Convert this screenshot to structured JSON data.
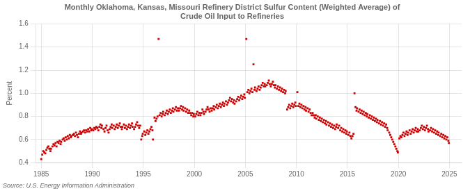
{
  "chart_data": {
    "type": "scatter",
    "title": "Monthly Oklahoma, Kansas, Missouri Refinery District Sulfur Content (Weighted Average) of\nCrude Oil Input to Refineries",
    "ylabel": "Percent",
    "source": "Source: U.S. Energy Information Administration",
    "color": "#CC0000",
    "marker": "square",
    "grid": true,
    "xlim": [
      1984.5,
      2026.2
    ],
    "ylim": [
      0.4,
      1.6
    ],
    "xticks": [
      1985,
      1990,
      1995,
      2000,
      2005,
      2010,
      2015,
      2020,
      2025
    ],
    "yticks": [
      0.4,
      0.6,
      0.8,
      {
        "value": 1.0,
        "label": "1.0"
      },
      1.2,
      1.4,
      1.6
    ],
    "x": [
      1985.0,
      1985.1,
      1985.2,
      1985.3,
      1985.4,
      1985.5,
      1985.6,
      1985.7,
      1985.8,
      1985.9,
      1985.95,
      1986.1,
      1986.2,
      1986.3,
      1986.4,
      1986.5,
      1986.6,
      1986.7,
      1986.8,
      1986.9,
      1986.95,
      1987.1,
      1987.2,
      1987.3,
      1987.4,
      1987.5,
      1987.6,
      1987.7,
      1987.8,
      1987.9,
      1987.95,
      1988.1,
      1988.2,
      1988.3,
      1988.4,
      1988.5,
      1988.6,
      1988.7,
      1988.8,
      1988.9,
      1988.95,
      1989.1,
      1989.2,
      1989.3,
      1989.4,
      1989.5,
      1989.6,
      1989.7,
      1989.8,
      1989.9,
      1989.95,
      1990.1,
      1990.2,
      1990.3,
      1990.4,
      1990.5,
      1990.6,
      1990.7,
      1990.8,
      1990.9,
      1990.95,
      1991.1,
      1991.2,
      1991.3,
      1991.4,
      1991.5,
      1991.6,
      1991.7,
      1991.8,
      1991.9,
      1991.95,
      1992.1,
      1992.2,
      1992.3,
      1992.4,
      1992.5,
      1992.6,
      1992.7,
      1992.8,
      1992.9,
      1992.95,
      1993.1,
      1993.2,
      1993.3,
      1993.4,
      1993.5,
      1993.6,
      1993.7,
      1993.8,
      1993.9,
      1993.95,
      1994.1,
      1994.2,
      1994.3,
      1994.4,
      1994.5,
      1994.6,
      1994.7,
      1994.8,
      1994.9,
      1994.95,
      1995.1,
      1995.2,
      1995.3,
      1995.4,
      1995.5,
      1995.6,
      1995.7,
      1995.8,
      1995.9,
      1995.95,
      1996.1,
      1996.2,
      1996.3,
      1996.4,
      1996.5,
      1996.6,
      1996.7,
      1996.8,
      1996.9,
      1996.95,
      1997.1,
      1997.2,
      1997.3,
      1997.4,
      1997.5,
      1997.6,
      1997.7,
      1997.8,
      1997.9,
      1997.95,
      1998.1,
      1998.2,
      1998.3,
      1998.4,
      1998.5,
      1998.6,
      1998.7,
      1998.8,
      1998.9,
      1998.95,
      1999.1,
      1999.2,
      1999.3,
      1999.4,
      1999.5,
      1999.6,
      1999.7,
      1999.8,
      1999.9,
      1999.95,
      2000.1,
      2000.2,
      2000.3,
      2000.4,
      2000.5,
      2000.6,
      2000.7,
      2000.8,
      2000.9,
      2000.95,
      2001.1,
      2001.2,
      2001.3,
      2001.4,
      2001.5,
      2001.6,
      2001.7,
      2001.8,
      2001.9,
      2001.95,
      2002.1,
      2002.2,
      2002.3,
      2002.4,
      2002.5,
      2002.6,
      2002.7,
      2002.8,
      2002.9,
      2002.95,
      2003.1,
      2003.2,
      2003.3,
      2003.4,
      2003.5,
      2003.6,
      2003.7,
      2003.8,
      2003.9,
      2003.95,
      2004.1,
      2004.2,
      2004.3,
      2004.4,
      2004.5,
      2004.6,
      2004.7,
      2004.8,
      2004.9,
      2004.95,
      2005.1,
      2005.2,
      2005.3,
      2005.4,
      2005.5,
      2005.6,
      2005.7,
      2005.8,
      2005.9,
      2005.95,
      2006.1,
      2006.2,
      2006.3,
      2006.4,
      2006.5,
      2006.6,
      2006.7,
      2006.8,
      2006.9,
      2006.95,
      2007.1,
      2007.2,
      2007.3,
      2007.4,
      2007.5,
      2007.6,
      2007.7,
      2007.8,
      2007.9,
      2007.95,
      2008.1,
      2008.2,
      2008.3,
      2008.4,
      2008.5,
      2008.6,
      2008.7,
      2008.8,
      2008.9,
      2008.95,
      2009.1,
      2009.2,
      2009.3,
      2009.4,
      2009.5,
      2009.6,
      2009.7,
      2009.8,
      2009.9,
      2009.95,
      2010.1,
      2010.2,
      2010.3,
      2010.4,
      2010.5,
      2010.6,
      2010.7,
      2010.8,
      2010.9,
      2010.95,
      2011.1,
      2011.2,
      2011.3,
      2011.4,
      2011.5,
      2011.6,
      2011.7,
      2011.8,
      2011.9,
      2011.95,
      2012.1,
      2012.2,
      2012.3,
      2012.4,
      2012.5,
      2012.6,
      2012.7,
      2012.8,
      2012.9,
      2012.95,
      2013.1,
      2013.2,
      2013.3,
      2013.4,
      2013.5,
      2013.6,
      2013.7,
      2013.8,
      2013.9,
      2013.95,
      2014.1,
      2014.2,
      2014.3,
      2014.4,
      2014.5,
      2014.6,
      2014.7,
      2014.8,
      2014.9,
      2014.95,
      2015.1,
      2015.2,
      2015.3,
      2015.4,
      2015.5,
      2015.6,
      2015.7,
      2015.8,
      2015.9,
      2015.95,
      2016.1,
      2016.2,
      2016.3,
      2016.4,
      2016.5,
      2016.6,
      2016.7,
      2016.8,
      2016.9,
      2016.95,
      2017.1,
      2017.2,
      2017.3,
      2017.4,
      2017.5,
      2017.6,
      2017.7,
      2017.8,
      2017.9,
      2017.95,
      2018.1,
      2018.2,
      2018.3,
      2018.4,
      2018.5,
      2018.6,
      2018.7,
      2018.8,
      2018.9,
      2018.95,
      2019.1,
      2019.2,
      2019.3,
      2019.4,
      2019.5,
      2019.6,
      2019.7,
      2019.8,
      2019.9,
      2019.95,
      2020.1,
      2020.2,
      2020.3,
      2020.4,
      2020.5,
      2020.6,
      2020.7,
      2020.8,
      2020.9,
      2020.95,
      2021.1,
      2021.2,
      2021.3,
      2021.4,
      2021.5,
      2021.6,
      2021.7,
      2021.8,
      2021.9,
      2021.95,
      2022.1,
      2022.2,
      2022.3,
      2022.4,
      2022.5,
      2022.6,
      2022.7,
      2022.8,
      2022.9,
      2022.95,
      2023.1,
      2023.2,
      2023.3,
      2023.4,
      2023.5,
      2023.6,
      2023.7,
      2023.8,
      2023.9,
      2023.95,
      2024.1,
      2024.2,
      2024.3,
      2024.4,
      2024.5,
      2024.6,
      2024.7,
      2024.8,
      2024.9,
      2024.95
    ],
    "values": [
      0.43,
      0.47,
      0.5,
      0.49,
      0.48,
      0.51,
      0.53,
      0.54,
      0.52,
      0.5,
      0.52,
      0.54,
      0.56,
      0.55,
      0.57,
      0.54,
      0.58,
      0.57,
      0.59,
      0.56,
      0.58,
      0.6,
      0.61,
      0.59,
      0.62,
      0.6,
      0.63,
      0.61,
      0.64,
      0.62,
      0.63,
      0.64,
      0.65,
      0.63,
      0.66,
      0.64,
      0.62,
      0.65,
      0.67,
      0.65,
      0.66,
      0.67,
      0.68,
      0.66,
      0.68,
      0.67,
      0.69,
      0.67,
      0.7,
      0.68,
      0.69,
      0.68,
      0.7,
      0.69,
      0.71,
      0.7,
      0.68,
      0.71,
      0.73,
      0.7,
      0.72,
      0.69,
      0.67,
      0.7,
      0.72,
      0.68,
      0.66,
      0.69,
      0.71,
      0.73,
      0.7,
      0.72,
      0.69,
      0.71,
      0.73,
      0.7,
      0.72,
      0.74,
      0.71,
      0.69,
      0.71,
      0.73,
      0.7,
      0.72,
      0.69,
      0.71,
      0.73,
      0.7,
      0.72,
      0.74,
      0.71,
      0.69,
      0.71,
      0.73,
      0.75,
      0.72,
      0.7,
      0.72,
      0.6,
      0.63,
      0.65,
      0.67,
      0.64,
      0.66,
      0.68,
      0.65,
      0.67,
      0.69,
      0.71,
      0.68,
      0.6,
      0.79,
      0.76,
      0.78,
      0.8,
      1.47,
      0.81,
      0.83,
      0.8,
      0.82,
      0.84,
      0.81,
      0.83,
      0.85,
      0.82,
      0.84,
      0.86,
      0.83,
      0.85,
      0.87,
      0.84,
      0.86,
      0.88,
      0.85,
      0.87,
      0.85,
      0.87,
      0.89,
      0.86,
      0.88,
      0.85,
      0.87,
      0.84,
      0.86,
      0.83,
      0.85,
      0.83,
      0.81,
      0.83,
      0.8,
      0.82,
      0.8,
      0.82,
      0.84,
      0.81,
      0.83,
      0.81,
      0.83,
      0.86,
      0.84,
      0.82,
      0.84,
      0.86,
      0.88,
      0.86,
      0.84,
      0.87,
      0.85,
      0.87,
      0.89,
      0.86,
      0.88,
      0.9,
      0.87,
      0.89,
      0.91,
      0.88,
      0.9,
      0.92,
      0.89,
      0.91,
      0.93,
      0.9,
      0.92,
      0.94,
      0.96,
      0.93,
      0.95,
      0.92,
      0.94,
      0.91,
      0.93,
      0.95,
      0.97,
      0.94,
      0.96,
      0.98,
      0.95,
      0.97,
      0.99,
      0.96,
      1.47,
      1.01,
      1.03,
      1.0,
      1.02,
      1.04,
      1.01,
      1.25,
      1.03,
      1.05,
      1.02,
      1.04,
      1.06,
      1.03,
      1.05,
      1.07,
      1.09,
      1.06,
      1.08,
      1.06,
      1.07,
      1.09,
      1.11,
      1.08,
      1.06,
      1.08,
      1.1,
      1.07,
      1.05,
      1.07,
      1.04,
      1.06,
      1.03,
      1.05,
      1.02,
      1.04,
      1.01,
      1.03,
      1.0,
      1.02,
      0.86,
      0.88,
      0.9,
      0.87,
      0.89,
      0.91,
      0.88,
      0.9,
      0.92,
      0.89,
      1.01,
      0.89,
      0.91,
      0.88,
      0.9,
      0.87,
      0.89,
      0.86,
      0.88,
      0.85,
      0.87,
      0.84,
      0.86,
      0.83,
      0.81,
      0.83,
      0.81,
      0.79,
      0.81,
      0.78,
      0.8,
      0.77,
      0.79,
      0.76,
      0.78,
      0.75,
      0.77,
      0.74,
      0.76,
      0.73,
      0.75,
      0.72,
      0.74,
      0.71,
      0.73,
      0.7,
      0.72,
      0.69,
      0.71,
      0.73,
      0.7,
      0.72,
      0.68,
      0.7,
      0.67,
      0.69,
      0.66,
      0.68,
      0.65,
      0.67,
      0.64,
      0.66,
      0.63,
      0.61,
      0.63,
      0.65,
      1.0,
      0.88,
      0.85,
      0.87,
      0.84,
      0.86,
      0.83,
      0.85,
      0.82,
      0.84,
      0.81,
      0.83,
      0.8,
      0.82,
      0.79,
      0.81,
      0.78,
      0.8,
      0.77,
      0.79,
      0.76,
      0.78,
      0.75,
      0.77,
      0.74,
      0.76,
      0.73,
      0.75,
      0.72,
      0.74,
      0.71,
      0.73,
      0.7,
      0.68,
      0.66,
      0.64,
      0.62,
      0.6,
      0.58,
      0.56,
      0.54,
      0.52,
      0.5,
      0.49,
      0.61,
      0.63,
      0.62,
      0.64,
      0.66,
      0.63,
      0.65,
      0.67,
      0.64,
      0.66,
      0.68,
      0.65,
      0.67,
      0.69,
      0.66,
      0.68,
      0.7,
      0.67,
      0.69,
      0.67,
      0.68,
      0.7,
      0.72,
      0.69,
      0.71,
      0.68,
      0.7,
      0.72,
      0.69,
      0.67,
      0.68,
      0.7,
      0.67,
      0.69,
      0.66,
      0.68,
      0.65,
      0.67,
      0.64,
      0.66,
      0.63,
      0.65,
      0.62,
      0.64,
      0.61,
      0.63,
      0.6,
      0.62,
      0.59,
      0.57
    ]
  }
}
